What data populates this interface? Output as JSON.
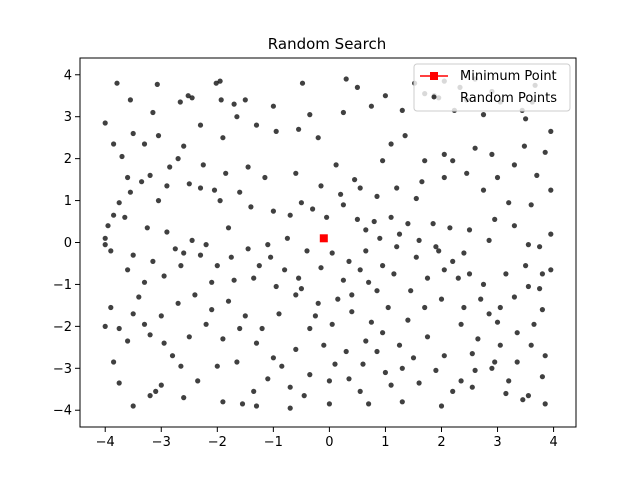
{
  "chart_data": {
    "type": "scatter",
    "title": "Random Search",
    "xlabel": "",
    "ylabel": "",
    "xlim": [
      -4.45,
      4.4
    ],
    "ylim": [
      -4.4,
      4.4
    ],
    "xticks": [
      -4,
      -3,
      -2,
      -1,
      0,
      1,
      2,
      3,
      4
    ],
    "yticks": [
      -4,
      -3,
      -2,
      -1,
      0,
      1,
      2,
      3,
      4
    ],
    "grid": false,
    "legend_position": "top-right",
    "series": [
      {
        "name": "Minimum Point",
        "marker": "square",
        "color": "#ff0000",
        "points": [
          [
            -0.1,
            0.1
          ]
        ]
      },
      {
        "name": "Random Points",
        "marker": "circle",
        "color": "#000000",
        "points": [
          [
            -3.79,
            3.8
          ],
          [
            -3.07,
            3.77
          ],
          [
            -2.66,
            3.35
          ],
          [
            -2.52,
            3.5
          ],
          [
            -2.02,
            3.8
          ],
          [
            -1.95,
            3.85
          ],
          [
            -1.93,
            3.4
          ],
          [
            -1.5,
            3.4
          ],
          [
            -0.48,
            3.8
          ],
          [
            0.3,
            3.9
          ],
          [
            0.5,
            3.7
          ],
          [
            1.0,
            3.5
          ],
          [
            1.52,
            3.8
          ],
          [
            1.7,
            3.55
          ],
          [
            1.87,
            3.5
          ],
          [
            2.05,
            3.85
          ],
          [
            2.23,
            3.15
          ],
          [
            2.33,
            3.7
          ],
          [
            2.45,
            3.4
          ],
          [
            2.6,
            3.9
          ],
          [
            2.9,
            3.6
          ],
          [
            3.05,
            3.35
          ],
          [
            3.44,
            3.15
          ],
          [
            3.62,
            3.35
          ],
          [
            3.67,
            3.75
          ],
          [
            3.95,
            2.65
          ],
          [
            3.85,
            2.15
          ],
          [
            3.48,
            2.3
          ],
          [
            3.3,
            1.85
          ],
          [
            3.0,
            1.55
          ],
          [
            2.9,
            2.1
          ],
          [
            2.6,
            2.25
          ],
          [
            2.2,
            1.95
          ],
          [
            2.05,
            2.1
          ],
          [
            1.7,
            1.95
          ],
          [
            1.35,
            2.55
          ],
          [
            1.1,
            2.35
          ],
          [
            0.95,
            1.95
          ],
          [
            0.45,
            1.5
          ],
          [
            0.12,
            1.85
          ],
          [
            -0.2,
            2.5
          ],
          [
            -0.55,
            2.7
          ],
          [
            -0.95,
            2.65
          ],
          [
            -1.3,
            2.8
          ],
          [
            -1.65,
            3.0
          ],
          [
            -1.9,
            2.5
          ],
          [
            -2.3,
            2.8
          ],
          [
            -2.7,
            2.0
          ],
          [
            -3.05,
            2.55
          ],
          [
            -3.3,
            2.35
          ],
          [
            -3.5,
            2.6
          ],
          [
            -3.85,
            2.35
          ],
          [
            -4.0,
            2.85
          ],
          [
            -3.6,
            1.55
          ],
          [
            -3.35,
            1.45
          ],
          [
            -3.05,
            1.0
          ],
          [
            -2.85,
            1.8
          ],
          [
            -2.5,
            1.4
          ],
          [
            -2.3,
            1.3
          ],
          [
            -2.05,
            1.25
          ],
          [
            -1.95,
            1.0
          ],
          [
            -1.6,
            1.2
          ],
          [
            -1.4,
            0.85
          ],
          [
            -1.0,
            0.75
          ],
          [
            -0.7,
            0.65
          ],
          [
            -0.5,
            0.95
          ],
          [
            -0.3,
            0.8
          ],
          [
            -0.05,
            0.6
          ],
          [
            0.2,
            1.15
          ],
          [
            0.5,
            0.55
          ],
          [
            0.8,
            0.5
          ],
          [
            1.1,
            0.6
          ],
          [
            1.55,
            1.05
          ],
          [
            1.85,
            0.45
          ],
          [
            2.15,
            0.35
          ],
          [
            2.5,
            0.3
          ],
          [
            2.95,
            0.55
          ],
          [
            3.3,
            0.4
          ],
          [
            3.55,
            -0.05
          ],
          [
            3.75,
            -0.1
          ],
          [
            3.95,
            0.2
          ],
          [
            3.8,
            -0.75
          ],
          [
            3.55,
            -1.05
          ],
          [
            3.3,
            -1.3
          ],
          [
            3.05,
            -1.55
          ],
          [
            2.75,
            -1.0
          ],
          [
            2.5,
            -0.75
          ],
          [
            2.2,
            -0.45
          ],
          [
            1.95,
            -0.2
          ],
          [
            1.55,
            -0.35
          ],
          [
            1.2,
            -0.1
          ],
          [
            0.95,
            -0.55
          ],
          [
            0.7,
            -0.95
          ],
          [
            0.4,
            -1.25
          ],
          [
            0.15,
            -1.35
          ],
          [
            -0.2,
            -1.45
          ],
          [
            -0.5,
            -1.1
          ],
          [
            -0.8,
            -0.65
          ],
          [
            -1.05,
            -0.35
          ],
          [
            -1.35,
            -0.85
          ],
          [
            -1.7,
            -0.9
          ],
          [
            -2.0,
            -0.55
          ],
          [
            -2.3,
            -0.3
          ],
          [
            -2.65,
            -0.55
          ],
          [
            -2.95,
            -0.8
          ],
          [
            -3.3,
            -0.95
          ],
          [
            -3.6,
            -0.65
          ],
          [
            -3.9,
            -0.2
          ],
          [
            -4.0,
            0.1
          ],
          [
            -3.65,
            0.6
          ],
          [
            -3.25,
            0.35
          ],
          [
            -2.9,
            0.25
          ],
          [
            -2.6,
            -0.25
          ],
          [
            -2.2,
            -0.05
          ],
          [
            -1.8,
            0.35
          ],
          [
            -1.45,
            -0.15
          ],
          [
            -1.1,
            -0.05
          ],
          [
            -0.75,
            0.1
          ],
          [
            -0.4,
            -0.2
          ],
          [
            0.05,
            -0.25
          ],
          [
            0.35,
            -0.45
          ],
          [
            0.65,
            -0.2
          ],
          [
            0.9,
            0.1
          ],
          [
            1.25,
            0.2
          ],
          [
            1.6,
            0.05
          ],
          [
            1.9,
            -0.1
          ],
          [
            2.3,
            -0.85
          ],
          [
            2.7,
            -1.35
          ],
          [
            3.0,
            -1.9
          ],
          [
            3.35,
            -2.15
          ],
          [
            3.6,
            -2.45
          ],
          [
            3.85,
            -2.7
          ],
          [
            3.8,
            -3.2
          ],
          [
            3.55,
            -3.65
          ],
          [
            3.2,
            -3.3
          ],
          [
            2.95,
            -2.85
          ],
          [
            2.6,
            -3.05
          ],
          [
            2.35,
            -3.3
          ],
          [
            2.05,
            -2.7
          ],
          [
            1.75,
            -2.25
          ],
          [
            1.5,
            -2.75
          ],
          [
            1.3,
            -3.0
          ],
          [
            1.1,
            -3.4
          ],
          [
            0.85,
            -2.6
          ],
          [
            0.6,
            -2.9
          ],
          [
            0.35,
            -3.25
          ],
          [
            0.1,
            -2.9
          ],
          [
            -0.1,
            -2.45
          ],
          [
            -0.35,
            -2.05
          ],
          [
            -0.6,
            -2.55
          ],
          [
            -0.85,
            -2.95
          ],
          [
            -1.1,
            -3.25
          ],
          [
            -1.35,
            -3.55
          ],
          [
            -1.65,
            -2.85
          ],
          [
            -1.9,
            -2.3
          ],
          [
            -2.2,
            -1.95
          ],
          [
            -2.5,
            -2.25
          ],
          [
            -2.8,
            -2.7
          ],
          [
            -3.0,
            -3.4
          ],
          [
            -3.2,
            -3.65
          ],
          [
            -3.5,
            -3.9
          ],
          [
            -3.75,
            -3.35
          ],
          [
            -3.85,
            -2.85
          ],
          [
            -3.6,
            -2.35
          ],
          [
            -3.3,
            -1.95
          ],
          [
            -3.0,
            -1.75
          ],
          [
            -2.7,
            -1.45
          ],
          [
            -2.4,
            -1.25
          ],
          [
            -2.1,
            -1.6
          ],
          [
            -1.8,
            -1.4
          ],
          [
            -1.5,
            -1.75
          ],
          [
            -1.2,
            -2.05
          ],
          [
            -0.9,
            -1.7
          ],
          [
            -0.6,
            -1.25
          ],
          [
            -0.25,
            -1.75
          ],
          [
            0.05,
            -1.95
          ],
          [
            0.4,
            -1.65
          ],
          [
            0.75,
            -1.9
          ],
          [
            1.05,
            -1.55
          ],
          [
            1.4,
            -1.85
          ],
          [
            1.7,
            -1.55
          ],
          [
            2.0,
            -1.35
          ],
          [
            2.35,
            -1.95
          ],
          [
            2.65,
            -2.3
          ],
          [
            2.9,
            -3.0
          ],
          [
            3.15,
            -3.6
          ],
          [
            3.45,
            -3.75
          ],
          [
            3.85,
            -3.85
          ],
          [
            2.0,
            -3.9
          ],
          [
            1.3,
            -3.8
          ],
          [
            0.7,
            -3.85
          ],
          [
            0.0,
            -3.85
          ],
          [
            -0.7,
            -3.95
          ],
          [
            -1.3,
            -3.9
          ],
          [
            -1.9,
            -3.8
          ],
          [
            -2.6,
            -3.7
          ],
          [
            -3.1,
            -3.55
          ],
          [
            -4.0,
            -2.0
          ],
          [
            -3.9,
            -1.55
          ],
          [
            -3.4,
            -1.3
          ],
          [
            -3.75,
            0.95
          ],
          [
            -4.0,
            -0.05
          ],
          [
            -3.95,
            0.4
          ],
          [
            -3.7,
            2.05
          ],
          [
            -3.55,
            3.4
          ],
          [
            -3.15,
            3.1
          ],
          [
            -2.45,
            3.45
          ],
          [
            -1.7,
            3.3
          ],
          [
            -1.0,
            3.25
          ],
          [
            -0.35,
            3.05
          ],
          [
            0.25,
            3.1
          ],
          [
            0.75,
            3.25
          ],
          [
            1.3,
            3.15
          ],
          [
            1.95,
            3.45
          ],
          [
            2.75,
            3.05
          ],
          [
            3.5,
            2.95
          ],
          [
            3.7,
            1.6
          ],
          [
            3.95,
            1.25
          ],
          [
            3.6,
            0.9
          ],
          [
            3.2,
            0.95
          ],
          [
            2.75,
            1.25
          ],
          [
            2.45,
            1.65
          ],
          [
            2.05,
            1.55
          ],
          [
            1.65,
            1.45
          ],
          [
            1.2,
            1.3
          ],
          [
            0.85,
            1.1
          ],
          [
            0.55,
            1.3
          ],
          [
            0.25,
            0.9
          ],
          [
            -0.15,
            1.35
          ],
          [
            -0.6,
            1.65
          ],
          [
            -1.15,
            1.55
          ],
          [
            -1.45,
            1.8
          ],
          [
            -1.85,
            1.65
          ],
          [
            -2.25,
            1.85
          ],
          [
            -2.6,
            2.3
          ],
          [
            -2.9,
            1.35
          ],
          [
            -3.2,
            1.6
          ],
          [
            -3.55,
            1.2
          ],
          [
            -3.85,
            0.65
          ],
          [
            -3.5,
            -0.3
          ],
          [
            -3.15,
            -0.45
          ],
          [
            -2.75,
            -0.15
          ],
          [
            -2.45,
            0.05
          ],
          [
            -2.1,
            -0.95
          ],
          [
            -1.75,
            -0.35
          ],
          [
            -1.25,
            -0.55
          ],
          [
            -0.95,
            -1.05
          ],
          [
            -0.55,
            -0.85
          ],
          [
            -0.15,
            -0.6
          ],
          [
            0.25,
            -0.9
          ],
          [
            0.55,
            -0.65
          ],
          [
            0.85,
            -1.15
          ],
          [
            1.15,
            -0.75
          ],
          [
            1.45,
            -1.15
          ],
          [
            1.75,
            -0.85
          ],
          [
            2.05,
            -0.65
          ],
          [
            2.4,
            -1.55
          ],
          [
            2.85,
            -1.7
          ],
          [
            3.15,
            -0.75
          ],
          [
            3.5,
            -0.55
          ],
          [
            3.8,
            -1.6
          ],
          [
            3.65,
            -1.95
          ],
          [
            3.35,
            -2.85
          ],
          [
            2.55,
            -2.65
          ],
          [
            2.2,
            -3.55
          ],
          [
            1.9,
            -3.05
          ],
          [
            1.6,
            -3.35
          ],
          [
            1.25,
            -2.45
          ],
          [
            0.95,
            -2.15
          ],
          [
            0.65,
            -2.35
          ],
          [
            0.3,
            -2.6
          ],
          [
            0.0,
            -3.3
          ],
          [
            -0.35,
            -3.15
          ],
          [
            -0.7,
            -3.45
          ],
          [
            -1.0,
            -2.75
          ],
          [
            -1.3,
            -2.4
          ],
          [
            -1.6,
            -2.05
          ],
          [
            -2.0,
            -2.95
          ],
          [
            -2.35,
            -3.3
          ],
          [
            -2.65,
            -2.95
          ],
          [
            -2.95,
            -2.4
          ],
          [
            -3.2,
            -2.2
          ],
          [
            -3.5,
            -1.7
          ],
          [
            -3.75,
            -2.05
          ],
          [
            -1.55,
            -3.85
          ],
          [
            -0.45,
            -3.65
          ],
          [
            0.55,
            -3.55
          ],
          [
            1.0,
            -3.1
          ],
          [
            2.55,
            -3.45
          ],
          [
            3.05,
            -2.45
          ],
          [
            3.75,
            -1.1
          ],
          [
            3.95,
            -0.65
          ],
          [
            2.85,
            0.05
          ],
          [
            2.4,
            -0.25
          ],
          [
            1.4,
            0.45
          ],
          [
            0.65,
            0.3
          ]
        ]
      }
    ]
  }
}
